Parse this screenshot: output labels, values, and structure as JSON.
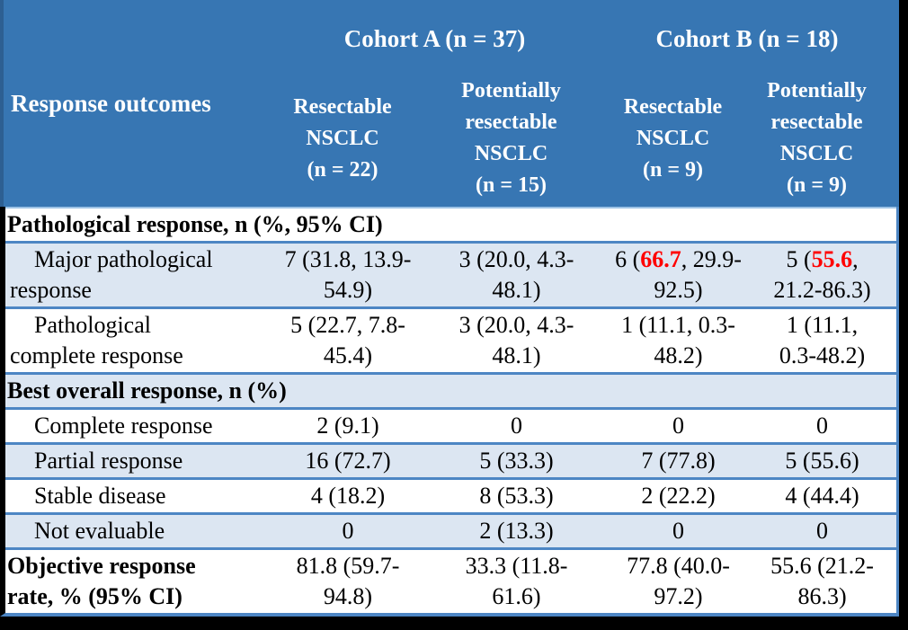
{
  "colors": {
    "header_bg": "#3776b3",
    "header_text": "#ffffff",
    "header_left_strip": "#2d5f92",
    "shaded_row_bg": "#dce6f2",
    "row_border_blue": "#4d86c4",
    "header_underline_blue": "#9dc3e6",
    "body_text": "#000000",
    "highlight_red": "#ff0000",
    "outer_frame": "#000000"
  },
  "table": {
    "corner_label": "Response outcomes",
    "cohort_a_label": "Cohort A (n = 37)",
    "cohort_b_label": "Cohort B (n = 18)",
    "subcolumns": [
      "Resectable\nNSCLC\n(n = 22)",
      "Potentially\nresectable\nNSCLC\n(n = 15)",
      "Resectable\nNSCLC\n(n = 9)",
      "Potentially\nresectable\nNSCLC\n(n = 9)"
    ],
    "rows": [
      {
        "kind": "section",
        "shaded": false,
        "label": "Pathological response, n (%, 95% CI)"
      },
      {
        "kind": "data",
        "shaded": true,
        "indent": true,
        "label": "Major pathological\nresponse",
        "cells": [
          "7 (31.8, 13.9-\n54.9)",
          "3 (20.0, 4.3-\n48.1)",
          "6 (**66.7**, 29.9-\n92.5)",
          "5 (**55.6**,\n21.2-86.3)"
        ]
      },
      {
        "kind": "data",
        "shaded": false,
        "indent": true,
        "label": "Pathological\ncomplete response",
        "cells": [
          "5 (22.7, 7.8-\n45.4)",
          "3 (20.0, 4.3-\n48.1)",
          "1 (11.1, 0.3-\n48.2)",
          "1 (11.1,\n0.3-48.2)"
        ]
      },
      {
        "kind": "section",
        "shaded": true,
        "label": "Best overall response, n (%)"
      },
      {
        "kind": "data",
        "shaded": false,
        "indent": true,
        "label": "Complete response",
        "cells": [
          "2 (9.1)",
          "0",
          "0",
          "0"
        ]
      },
      {
        "kind": "data",
        "shaded": true,
        "indent": true,
        "label": "Partial response",
        "cells": [
          "16 (72.7)",
          "5 (33.3)",
          "7 (77.8)",
          "5 (55.6)"
        ]
      },
      {
        "kind": "data",
        "shaded": false,
        "indent": true,
        "label": "Stable disease",
        "cells": [
          "4 (18.2)",
          "8 (53.3)",
          "2 (22.2)",
          "4 (44.4)"
        ]
      },
      {
        "kind": "data",
        "shaded": true,
        "indent": true,
        "label": "Not evaluable",
        "cells": [
          "0",
          "2 (13.3)",
          "0",
          "0"
        ]
      },
      {
        "kind": "data",
        "shaded": false,
        "indent": false,
        "bold_label": true,
        "label": "Objective response\nrate, % (95% CI)",
        "cells": [
          "81.8 (59.7-\n94.8)",
          "33.3 (11.8-\n61.6)",
          "77.8 (40.0-\n97.2)",
          "55.6 (21.2-\n86.3)"
        ]
      }
    ]
  }
}
